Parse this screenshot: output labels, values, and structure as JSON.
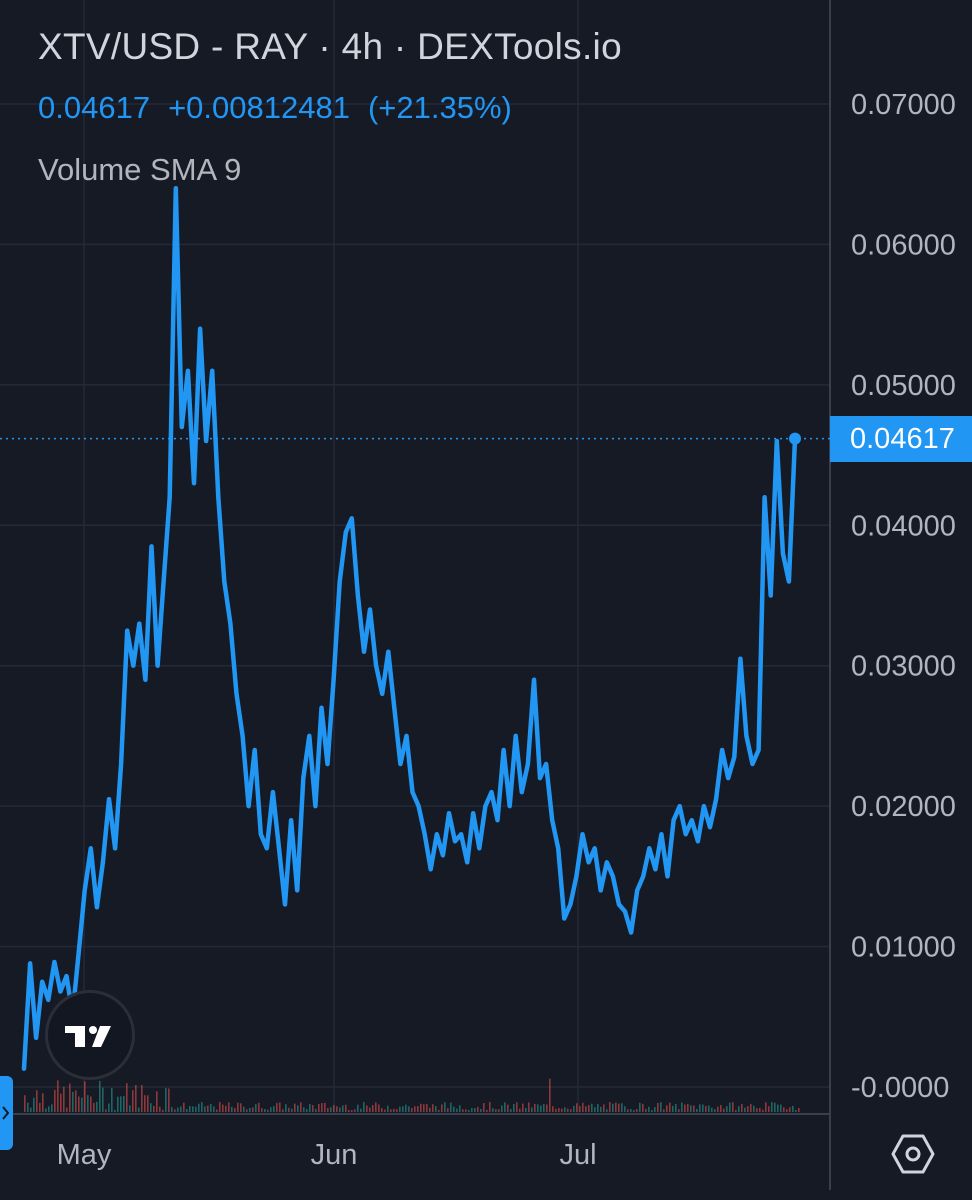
{
  "header": {
    "title": "XTV/USD - RAY · 4h · DEXTools.io",
    "last_price": "0.04617",
    "change": "+0.00812481",
    "change_pct": "(+21.35%)",
    "indicator": "Volume SMA 9"
  },
  "price_tag": "0.04617",
  "colors": {
    "background": "#161a25",
    "line": "#2196f3",
    "grid": "#242938",
    "axis_text": "#b2b5be",
    "volume_up": "#26a69a",
    "volume_down": "#ef5350"
  },
  "icons": {
    "logo": "tradingview-logo-icon",
    "settings": "hexagon-gear-icon",
    "side": "chevron-right-icon"
  },
  "chart_data": {
    "type": "line",
    "title": "XTV/USD - RAY · 4h · DEXTools.io",
    "xlabel": "",
    "ylabel": "",
    "x_ticks": [
      "May",
      "Jun",
      "Jul"
    ],
    "y_ticks": [
      "0.07000",
      "0.06000",
      "0.05000",
      "0.04000",
      "0.03000",
      "0.02000",
      "0.01000",
      "-0.0000"
    ],
    "ylim": [
      0,
      0.07
    ],
    "grid": true,
    "last_value": 0.04617,
    "series": [
      {
        "values": [
          0.0013,
          0.0088,
          0.0035,
          0.0075,
          0.0062,
          0.0089,
          0.0068,
          0.0079,
          0.0052,
          0.0095,
          0.014,
          0.017,
          0.0128,
          0.016,
          0.0205,
          0.017,
          0.023,
          0.0325,
          0.03,
          0.033,
          0.029,
          0.0385,
          0.03,
          0.036,
          0.042,
          0.064,
          0.047,
          0.051,
          0.043,
          0.054,
          0.046,
          0.051,
          0.042,
          0.036,
          0.033,
          0.028,
          0.025,
          0.02,
          0.024,
          0.018,
          0.017,
          0.021,
          0.017,
          0.013,
          0.019,
          0.014,
          0.022,
          0.025,
          0.02,
          0.027,
          0.023,
          0.029,
          0.036,
          0.0395,
          0.0405,
          0.035,
          0.031,
          0.034,
          0.03,
          0.028,
          0.031,
          0.027,
          0.023,
          0.025,
          0.021,
          0.02,
          0.018,
          0.0155,
          0.018,
          0.0165,
          0.0195,
          0.0175,
          0.018,
          0.016,
          0.0195,
          0.017,
          0.02,
          0.021,
          0.019,
          0.024,
          0.02,
          0.025,
          0.021,
          0.023,
          0.029,
          0.022,
          0.023,
          0.019,
          0.017,
          0.012,
          0.013,
          0.015,
          0.018,
          0.016,
          0.017,
          0.014,
          0.016,
          0.015,
          0.013,
          0.0125,
          0.011,
          0.014,
          0.015,
          0.017,
          0.0155,
          0.018,
          0.015,
          0.019,
          0.02,
          0.018,
          0.019,
          0.0175,
          0.02,
          0.0185,
          0.0205,
          0.024,
          0.022,
          0.0235,
          0.0305,
          0.025,
          0.023,
          0.024,
          0.042,
          0.035,
          0.046,
          0.038,
          0.036,
          0.04617
        ]
      }
    ]
  }
}
